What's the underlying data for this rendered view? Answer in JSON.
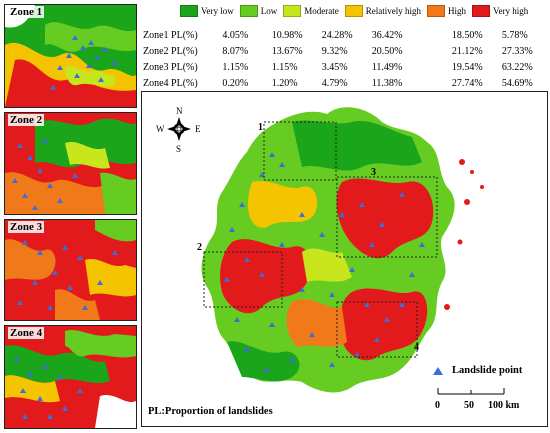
{
  "zones": [
    {
      "label": "Zone 1"
    },
    {
      "label": "Zone 2"
    },
    {
      "label": "Zone 3"
    },
    {
      "label": "Zone 4"
    }
  ],
  "legend": [
    {
      "label": "Very low",
      "color": "#1aa51a"
    },
    {
      "label": "Low",
      "color": "#66cc22"
    },
    {
      "label": "Moderate",
      "color": "#c8e61e"
    },
    {
      "label": "Relatively high",
      "color": "#f5c400"
    },
    {
      "label": "High",
      "color": "#f07a1a"
    },
    {
      "label": "Very high",
      "color": "#e31a1c"
    }
  ],
  "table": [
    {
      "name": "Zone1 PL(%)",
      "values": [
        "4.05%",
        "10.98%",
        "24.28%",
        "36.42%",
        "18.50%",
        "5.78%"
      ]
    },
    {
      "name": "Zone2 PL(%)",
      "values": [
        "8.07%",
        "13.67%",
        "9.32%",
        "20.50%",
        "21.12%",
        "27.33%"
      ]
    },
    {
      "name": "Zone3 PL(%)",
      "values": [
        "1.15%",
        "1.15%",
        "3.45%",
        "11.49%",
        "19.54%",
        "63.22%"
      ]
    },
    {
      "name": "Zone4 PL(%)",
      "values": [
        "0.20%",
        "1.20%",
        "4.79%",
        "11.38%",
        "27.74%",
        "54.69%"
      ]
    }
  ],
  "map": {
    "compass": {
      "n": "N",
      "s": "S",
      "e": "E",
      "w": "W"
    },
    "zone_numbers": [
      "1",
      "2",
      "3",
      "4"
    ],
    "landslide_label": "Landslide point",
    "landslide_color": "#3a6fd8",
    "scale": {
      "ticks": [
        "0",
        "50",
        "100 km"
      ]
    },
    "caption": "PL:Proportion of landslides"
  }
}
